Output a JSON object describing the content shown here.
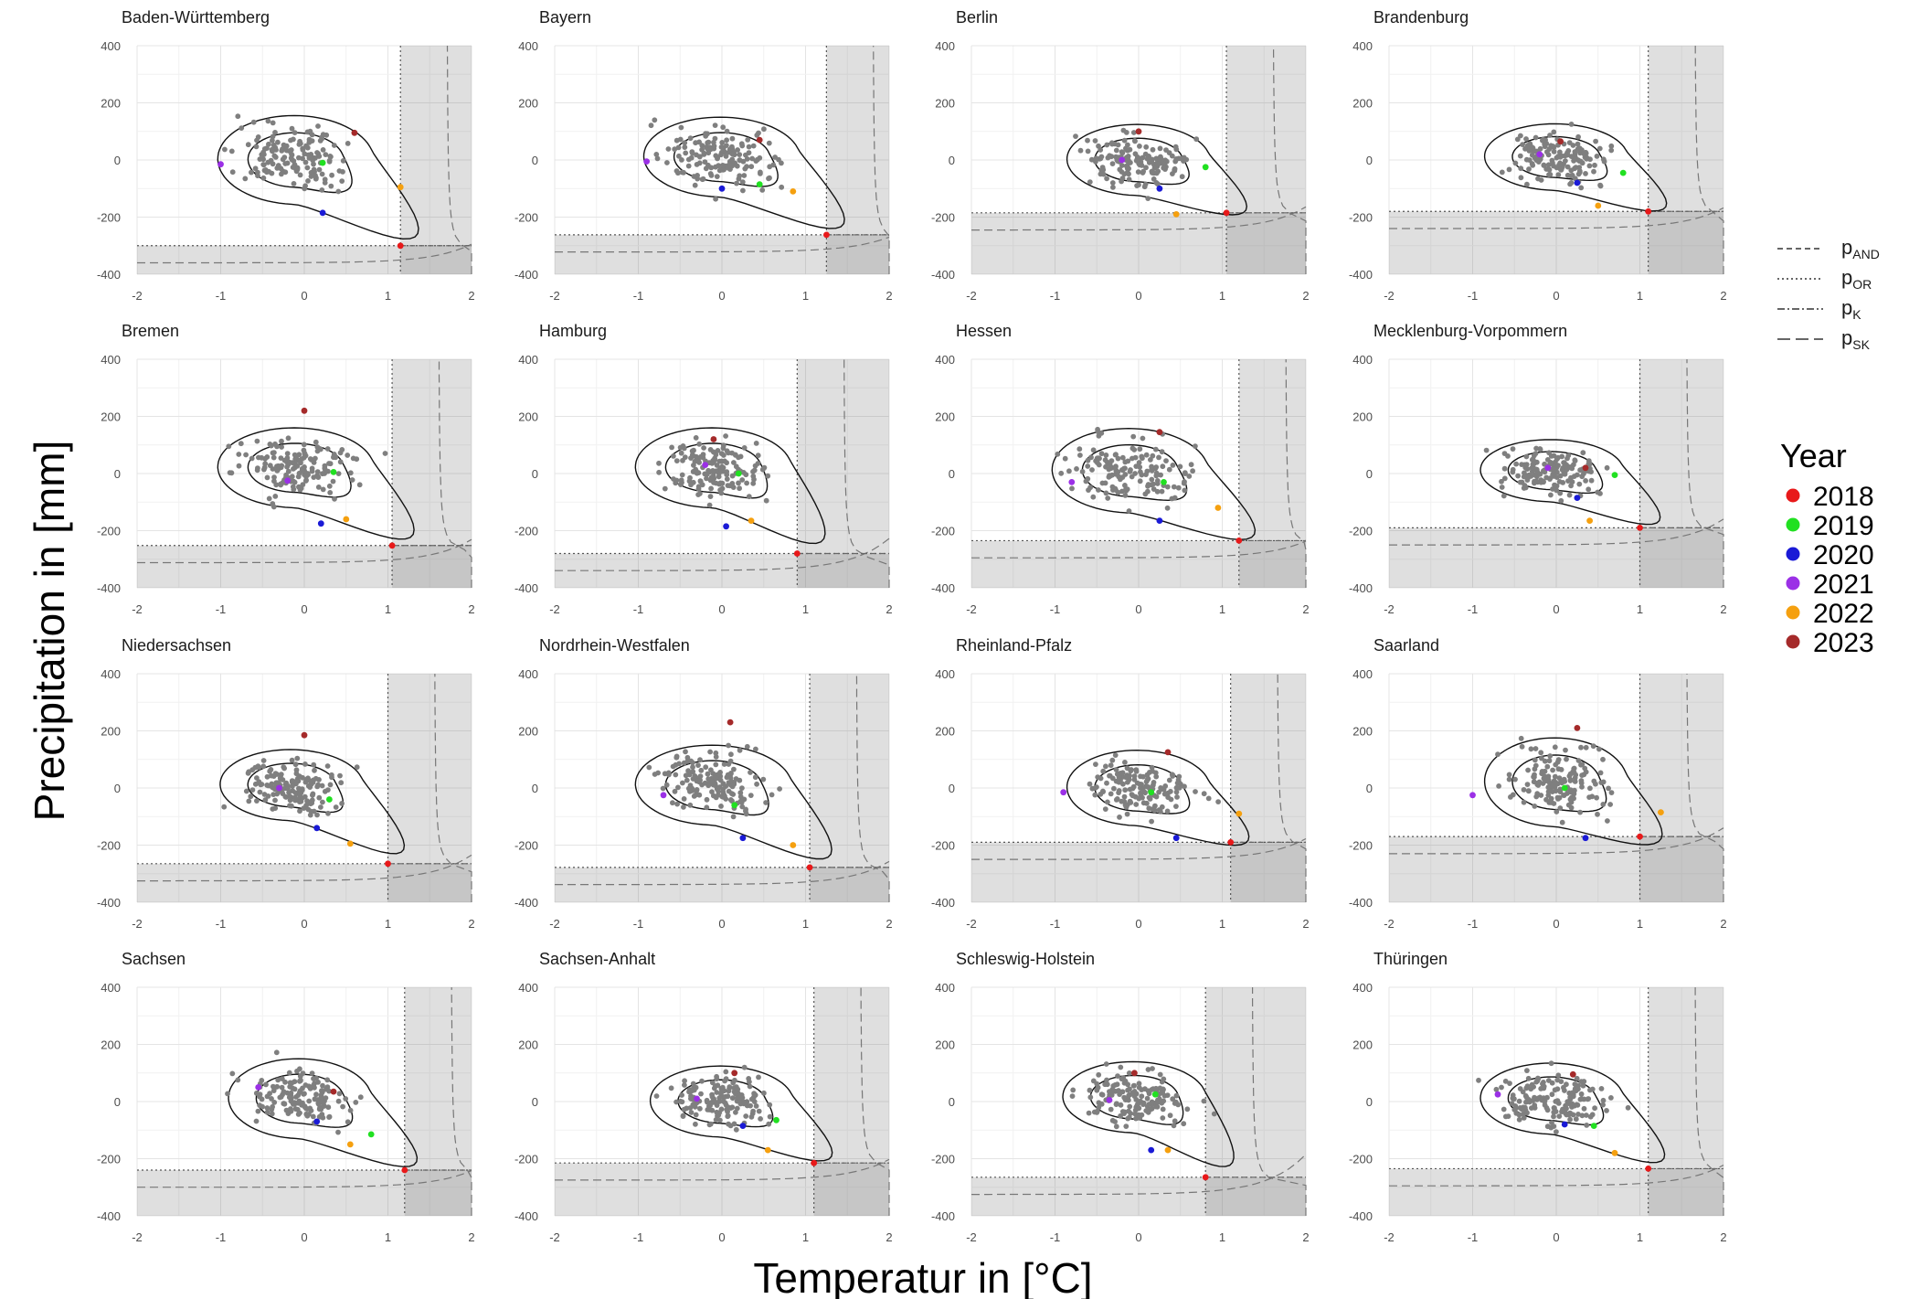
{
  "chart_data": {
    "type": "scatter",
    "xlabel": "Temperatur in [°C]",
    "ylabel": "Precipitation in [mm]",
    "xlim": [
      -2,
      2
    ],
    "ylim": [
      -400,
      400
    ],
    "x_ticks": [
      "-2",
      "-1",
      "0",
      "1",
      "2"
    ],
    "y_ticks": [
      "400",
      "200",
      "0",
      "-200",
      "-400"
    ],
    "grid": true,
    "line_legend": {
      "position": "right",
      "items": [
        {
          "base": "p",
          "sub": "AND",
          "dash": "6,4"
        },
        {
          "base": "p",
          "sub": "OR",
          "dash": "2,3"
        },
        {
          "base": "p",
          "sub": "K",
          "dash": "8,3,2,3"
        },
        {
          "base": "p",
          "sub": "SK",
          "dash": "14,6"
        }
      ]
    },
    "year_legend": {
      "title": "Year",
      "position": "right",
      "items": [
        {
          "year": "2018",
          "color": "#e8191a"
        },
        {
          "year": "2019",
          "color": "#21e021"
        },
        {
          "year": "2020",
          "color": "#1a1ad6"
        },
        {
          "year": "2021",
          "color": "#9b30e6"
        },
        {
          "year": "2022",
          "color": "#f5a00f"
        },
        {
          "year": "2023",
          "color": "#a52a2a"
        }
      ]
    },
    "panels": [
      {
        "title": "Baden-Württemberg",
        "threshold": [
          1.15,
          -300
        ],
        "center": [
          -0.1,
          0
        ],
        "spread": [
          0.6,
          100
        ],
        "seed": 11,
        "years": [
          [
            1.15,
            -300
          ],
          [
            0.22,
            -10
          ],
          [
            0.22,
            -185
          ],
          [
            -1.0,
            -15
          ],
          [
            1.15,
            -95
          ],
          [
            0.6,
            95
          ]
        ]
      },
      {
        "title": "Bayern",
        "threshold": [
          1.25,
          -262
        ],
        "center": [
          0.0,
          10
        ],
        "spread": [
          0.6,
          90
        ],
        "seed": 23,
        "years": [
          [
            1.25,
            -262
          ],
          [
            0.45,
            -85
          ],
          [
            0.0,
            -100
          ],
          [
            -0.9,
            -5
          ],
          [
            0.85,
            -110
          ],
          [
            0.45,
            70
          ]
        ]
      },
      {
        "title": "Berlin",
        "threshold": [
          1.05,
          -185
        ],
        "center": [
          0.0,
          0
        ],
        "spread": [
          0.55,
          80
        ],
        "seed": 37,
        "years": [
          [
            1.05,
            -185
          ],
          [
            0.8,
            -25
          ],
          [
            0.25,
            -100
          ],
          [
            -0.2,
            0
          ],
          [
            0.45,
            -190
          ],
          [
            0.0,
            100
          ]
        ]
      },
      {
        "title": "Brandenburg",
        "threshold": [
          1.1,
          -180
        ],
        "center": [
          0.0,
          10
        ],
        "spread": [
          0.55,
          75
        ],
        "seed": 41,
        "years": [
          [
            1.1,
            -180
          ],
          [
            0.8,
            -45
          ],
          [
            0.25,
            -80
          ],
          [
            -0.2,
            20
          ],
          [
            0.5,
            -160
          ],
          [
            0.05,
            65
          ]
        ]
      },
      {
        "title": "Bremen",
        "threshold": [
          1.05,
          -252
        ],
        "center": [
          -0.1,
          20
        ],
        "spread": [
          0.6,
          90
        ],
        "seed": 53,
        "years": [
          [
            1.05,
            -252
          ],
          [
            0.35,
            5
          ],
          [
            0.2,
            -175
          ],
          [
            -0.2,
            -25
          ],
          [
            0.5,
            -160
          ],
          [
            0.0,
            220
          ]
        ]
      },
      {
        "title": "Hamburg",
        "threshold": [
          0.9,
          -280
        ],
        "center": [
          -0.1,
          20
        ],
        "spread": [
          0.6,
          90
        ],
        "seed": 61,
        "years": [
          [
            0.9,
            -280
          ],
          [
            0.2,
            0
          ],
          [
            0.05,
            -185
          ],
          [
            -0.2,
            30
          ],
          [
            0.35,
            -165
          ],
          [
            -0.1,
            120
          ]
        ]
      },
      {
        "title": "Hessen",
        "threshold": [
          1.2,
          -235
        ],
        "center": [
          -0.1,
          10
        ],
        "spread": [
          0.6,
          95
        ],
        "seed": 71,
        "years": [
          [
            1.2,
            -235
          ],
          [
            0.3,
            -30
          ],
          [
            0.25,
            -165
          ],
          [
            -0.8,
            -30
          ],
          [
            0.95,
            -120
          ],
          [
            0.25,
            145
          ]
        ]
      },
      {
        "title": "Mecklenburg-Vorpommern",
        "threshold": [
          1.0,
          -190
        ],
        "center": [
          -0.05,
          10
        ],
        "spread": [
          0.55,
          70
        ],
        "seed": 83,
        "years": [
          [
            1.0,
            -190
          ],
          [
            0.7,
            -5
          ],
          [
            0.25,
            -85
          ],
          [
            -0.1,
            20
          ],
          [
            0.4,
            -165
          ],
          [
            0.35,
            20
          ]
        ]
      },
      {
        "title": "Niedersachsen",
        "threshold": [
          1.0,
          -265
        ],
        "center": [
          -0.15,
          10
        ],
        "spread": [
          0.55,
          80
        ],
        "seed": 97,
        "years": [
          [
            1.0,
            -265
          ],
          [
            0.3,
            -40
          ],
          [
            0.15,
            -140
          ],
          [
            -0.3,
            0
          ],
          [
            0.55,
            -195
          ],
          [
            0.0,
            185
          ]
        ]
      },
      {
        "title": "Nordrhein-Westfalen",
        "threshold": [
          1.05,
          -278
        ],
        "center": [
          -0.1,
          10
        ],
        "spread": [
          0.6,
          90
        ],
        "seed": 101,
        "years": [
          [
            1.05,
            -278
          ],
          [
            0.15,
            -60
          ],
          [
            0.25,
            -175
          ],
          [
            -0.7,
            -25
          ],
          [
            0.85,
            -200
          ],
          [
            0.1,
            230
          ]
        ]
      },
      {
        "title": "Rheinland-Pfalz",
        "threshold": [
          1.1,
          -190
        ],
        "center": [
          0.0,
          0
        ],
        "spread": [
          0.55,
          85
        ],
        "seed": 113,
        "years": [
          [
            1.1,
            -190
          ],
          [
            0.15,
            -15
          ],
          [
            0.45,
            -175
          ],
          [
            -0.9,
            -15
          ],
          [
            1.2,
            -90
          ],
          [
            0.35,
            125
          ]
        ]
      },
      {
        "title": "Saarland",
        "threshold": [
          1.0,
          -170
        ],
        "center": [
          0.0,
          20
        ],
        "spread": [
          0.55,
          100
        ],
        "seed": 127,
        "years": [
          [
            1.0,
            -170
          ],
          [
            0.1,
            0
          ],
          [
            0.35,
            -175
          ],
          [
            -1.0,
            -25
          ],
          [
            1.25,
            -85
          ],
          [
            0.25,
            210
          ]
        ]
      },
      {
        "title": "Sachsen",
        "threshold": [
          1.2,
          -240
        ],
        "center": [
          -0.05,
          10
        ],
        "spread": [
          0.55,
          90
        ],
        "seed": 131,
        "years": [
          [
            1.2,
            -240
          ],
          [
            0.8,
            -115
          ],
          [
            0.15,
            -70
          ],
          [
            -0.55,
            50
          ],
          [
            0.55,
            -150
          ],
          [
            0.35,
            35
          ]
        ]
      },
      {
        "title": "Sachsen-Anhalt",
        "threshold": [
          1.1,
          -215
        ],
        "center": [
          0.0,
          0
        ],
        "spread": [
          0.55,
          80
        ],
        "seed": 149,
        "years": [
          [
            1.1,
            -215
          ],
          [
            0.65,
            -65
          ],
          [
            0.25,
            -85
          ],
          [
            -0.3,
            10
          ],
          [
            0.55,
            -170
          ],
          [
            0.15,
            100
          ]
        ]
      },
      {
        "title": "Schleswig-Holstein",
        "threshold": [
          0.8,
          -265
        ],
        "center": [
          -0.05,
          15
        ],
        "spread": [
          0.55,
          80
        ],
        "seed": 157,
        "years": [
          [
            0.8,
            -265
          ],
          [
            0.2,
            25
          ],
          [
            0.15,
            -170
          ],
          [
            -0.35,
            5
          ],
          [
            0.35,
            -170
          ],
          [
            -0.05,
            100
          ]
        ]
      },
      {
        "title": "Thüringen",
        "threshold": [
          1.1,
          -235
        ],
        "center": [
          -0.05,
          10
        ],
        "spread": [
          0.55,
          80
        ],
        "seed": 163,
        "years": [
          [
            1.1,
            -235
          ],
          [
            0.45,
            -85
          ],
          [
            0.1,
            -80
          ],
          [
            -0.7,
            25
          ],
          [
            0.7,
            -180
          ],
          [
            0.2,
            95
          ]
        ]
      }
    ]
  }
}
